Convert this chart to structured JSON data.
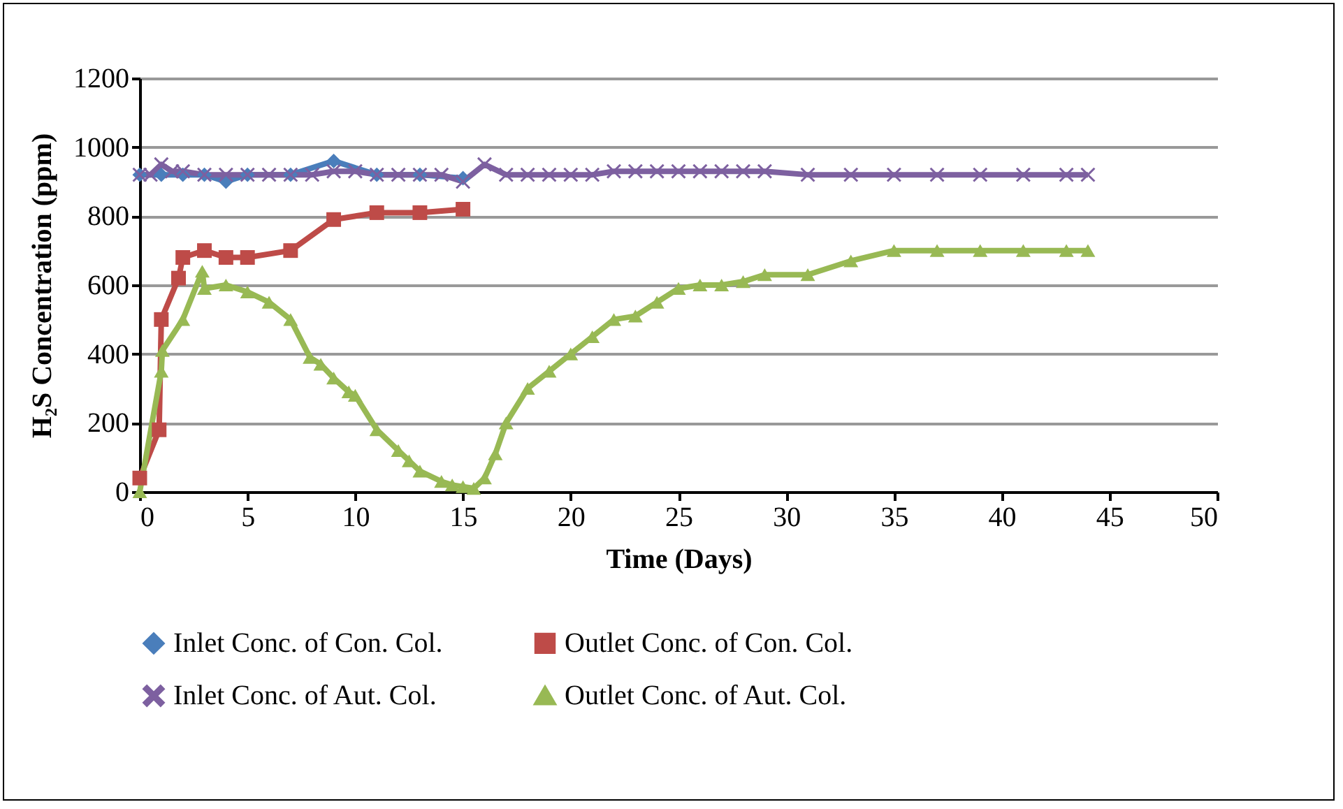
{
  "chart_data": {
    "type": "line",
    "xlabel": "Time (Days)",
    "ylabel": "H₂S  Concentration (ppm)",
    "xlim": [
      0,
      50
    ],
    "xticks": [
      0,
      5,
      10,
      15,
      20,
      25,
      30,
      35,
      40,
      45,
      50
    ],
    "ylim": [
      0,
      1200
    ],
    "yticks": [
      0,
      200,
      400,
      600,
      800,
      1000,
      1200
    ],
    "grid": "y",
    "legend": "bottom",
    "series": [
      {
        "name": "Inlet Conc. of Con. Col.",
        "color": "#4a7ebb",
        "marker": "diamond",
        "x": [
          0,
          1,
          2,
          3,
          4,
          5,
          7,
          9,
          11,
          13,
          15
        ],
        "values": [
          920,
          920,
          920,
          920,
          900,
          920,
          920,
          960,
          920,
          920,
          910
        ]
      },
      {
        "name": "Outlet Conc. of Con. Col.",
        "color": "#be4b48",
        "marker": "square",
        "x": [
          0,
          0.9,
          1,
          1.8,
          2,
          3,
          4,
          5,
          7,
          9,
          11,
          13,
          15
        ],
        "values": [
          40,
          180,
          500,
          620,
          680,
          700,
          680,
          680,
          700,
          790,
          810,
          810,
          820
        ]
      },
      {
        "name": "Inlet Conc. of Aut. Col.",
        "color": "#7d60a0",
        "marker": "cross",
        "x": [
          0,
          0.5,
          1,
          1.5,
          2,
          3,
          4,
          5,
          6,
          7,
          8,
          9,
          10,
          11,
          12,
          13,
          14,
          15,
          16,
          17,
          18,
          19,
          20,
          21,
          22,
          23,
          24,
          25,
          26,
          27,
          28,
          29,
          31,
          33,
          35,
          37,
          39,
          41,
          43,
          44
        ],
        "values": [
          920,
          920,
          950,
          930,
          930,
          920,
          920,
          920,
          920,
          920,
          920,
          930,
          930,
          920,
          920,
          920,
          920,
          900,
          950,
          920,
          920,
          920,
          920,
          920,
          930,
          930,
          930,
          930,
          930,
          930,
          930,
          930,
          920,
          920,
          920,
          920,
          920,
          920,
          920,
          920
        ]
      },
      {
        "name": "Outlet Conc. of Aut. Col.",
        "color": "#98b954",
        "marker": "triangle",
        "x": [
          0,
          1,
          1.05,
          2,
          2.9,
          3,
          4,
          5,
          6,
          7,
          7.9,
          8.4,
          9,
          9.7,
          10,
          11,
          12,
          12.5,
          13,
          14,
          14.5,
          15,
          15.5,
          16,
          16.5,
          17,
          18,
          19,
          20,
          21,
          22,
          23,
          24,
          25,
          26,
          27,
          28,
          29,
          31,
          33,
          35,
          37,
          39,
          41,
          43,
          44
        ],
        "values": [
          0,
          350,
          410,
          500,
          640,
          590,
          600,
          580,
          550,
          500,
          390,
          370,
          330,
          290,
          280,
          180,
          120,
          90,
          60,
          30,
          20,
          15,
          10,
          40,
          110,
          200,
          300,
          350,
          400,
          450,
          500,
          510,
          550,
          590,
          600,
          600,
          610,
          630,
          630,
          670,
          700,
          700,
          700,
          700,
          700,
          700
        ]
      }
    ]
  }
}
